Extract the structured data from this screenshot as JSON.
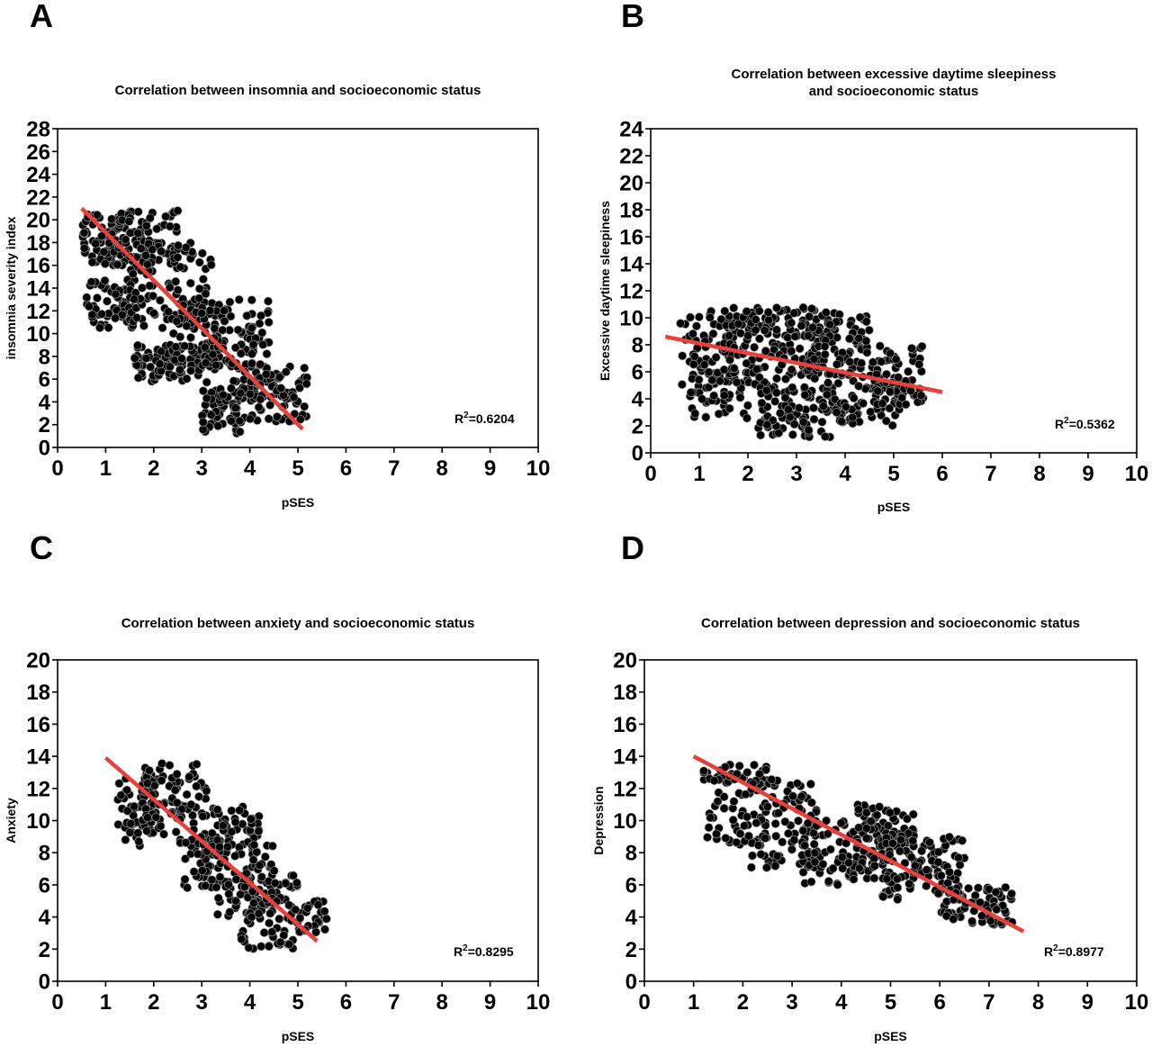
{
  "figure": {
    "panels": [
      {
        "letter": "A"
      },
      {
        "letter": "B"
      },
      {
        "letter": "C"
      },
      {
        "letter": "D"
      }
    ]
  },
  "chart_data": [
    {
      "type": "scatter",
      "title_lines": [
        "Correlation between insomnia and socioeconomic status"
      ],
      "xlabel": "pSES",
      "ylabel": "insomnia severity index",
      "xlim": [
        0,
        10
      ],
      "ylim": [
        0,
        28
      ],
      "xticks": [
        0,
        1,
        2,
        3,
        4,
        5,
        6,
        7,
        8,
        9,
        10
      ],
      "yticks": [
        0,
        2,
        4,
        6,
        8,
        10,
        12,
        14,
        16,
        18,
        20,
        22,
        24,
        26,
        28
      ],
      "regression": {
        "x": [
          0.5,
          5.1
        ],
        "y": [
          21.0,
          1.6
        ],
        "color": "#e8413c"
      },
      "r_squared": "0.6204",
      "grid": false,
      "point_color": "#000000",
      "clusters": [
        {
          "x": [
            0.5,
            1.4
          ],
          "y": [
            16,
            20.5
          ],
          "n": 70
        },
        {
          "x": [
            0.6,
            1.6
          ],
          "y": [
            10.5,
            15
          ],
          "n": 70
        },
        {
          "x": [
            1.2,
            2.5
          ],
          "y": [
            16,
            20.8
          ],
          "n": 80
        },
        {
          "x": [
            1.5,
            3.2
          ],
          "y": [
            10.5,
            18
          ],
          "n": 110
        },
        {
          "x": [
            1.6,
            2.6
          ],
          "y": [
            5.8,
            9
          ],
          "n": 60
        },
        {
          "x": [
            2.4,
            3.3
          ],
          "y": [
            6,
            12
          ],
          "n": 60
        },
        {
          "x": [
            3.0,
            4.4
          ],
          "y": [
            7,
            13
          ],
          "n": 90
        },
        {
          "x": [
            3.0,
            3.8
          ],
          "y": [
            1.2,
            6
          ],
          "n": 50
        },
        {
          "x": [
            3.6,
            5.2
          ],
          "y": [
            2.2,
            7.5
          ],
          "n": 110
        }
      ]
    },
    {
      "type": "scatter",
      "title_lines": [
        "Correlation between excessive daytime sleepiness",
        "and socioeconomic status"
      ],
      "xlabel": "pSES",
      "ylabel": "Excessive daytime sleepiness",
      "xlim": [
        0,
        10
      ],
      "ylim": [
        0,
        24
      ],
      "xticks": [
        0,
        1,
        2,
        3,
        4,
        5,
        6,
        7,
        8,
        9,
        10
      ],
      "yticks": [
        0,
        2,
        4,
        6,
        8,
        10,
        12,
        14,
        16,
        18,
        20,
        22,
        24
      ],
      "regression": {
        "x": [
          0.3,
          6.0
        ],
        "y": [
          8.6,
          4.5
        ],
        "color": "#e8413c"
      },
      "r_squared": "0.5362",
      "grid": false,
      "point_color": "#000000",
      "clusters": [
        {
          "x": [
            0.6,
            1.8
          ],
          "y": [
            5,
            10.5
          ],
          "n": 60
        },
        {
          "x": [
            0.8,
            2.0
          ],
          "y": [
            2.5,
            6
          ],
          "n": 50
        },
        {
          "x": [
            1.5,
            3.5
          ],
          "y": [
            5,
            10.8
          ],
          "n": 160
        },
        {
          "x": [
            2.2,
            3.8
          ],
          "y": [
            1,
            5
          ],
          "n": 90
        },
        {
          "x": [
            3.2,
            4.5
          ],
          "y": [
            6,
            10.5
          ],
          "n": 80
        },
        {
          "x": [
            3.5,
            5.2
          ],
          "y": [
            2,
            7
          ],
          "n": 100
        },
        {
          "x": [
            4.5,
            5.7
          ],
          "y": [
            3.5,
            8
          ],
          "n": 50
        }
      ]
    },
    {
      "type": "scatter",
      "title_lines": [
        "Correlation between anxiety and socioeconomic status"
      ],
      "xlabel": "pSES",
      "ylabel": "Anxiety",
      "xlim": [
        0,
        10
      ],
      "ylim": [
        0,
        20
      ],
      "xticks": [
        0,
        1,
        2,
        3,
        4,
        5,
        6,
        7,
        8,
        9,
        10
      ],
      "yticks": [
        0,
        2,
        4,
        6,
        8,
        10,
        12,
        14,
        16,
        18,
        20
      ],
      "regression": {
        "x": [
          1.0,
          5.4
        ],
        "y": [
          13.9,
          2.5
        ],
        "color": "#e8413c"
      },
      "r_squared": "0.8295",
      "grid": false,
      "point_color": "#000000",
      "clusters": [
        {
          "x": [
            1.2,
            2.0
          ],
          "y": [
            8.2,
            13
          ],
          "n": 50
        },
        {
          "x": [
            1.8,
            3.1
          ],
          "y": [
            9,
            13.6
          ],
          "n": 90
        },
        {
          "x": [
            2.5,
            3.4
          ],
          "y": [
            5.8,
            9
          ],
          "n": 60
        },
        {
          "x": [
            3.2,
            4.2
          ],
          "y": [
            8,
            11
          ],
          "n": 50
        },
        {
          "x": [
            3.3,
            4.5
          ],
          "y": [
            4,
            8.5
          ],
          "n": 80
        },
        {
          "x": [
            3.8,
            5.0
          ],
          "y": [
            2,
            7
          ],
          "n": 80
        },
        {
          "x": [
            4.9,
            5.6
          ],
          "y": [
            3,
            5
          ],
          "n": 30
        }
      ]
    },
    {
      "type": "scatter",
      "title_lines": [
        "Correlation between depression and socioeconomic status"
      ],
      "xlabel": "pSES",
      "ylabel": "Depression",
      "xlim": [
        0,
        10
      ],
      "ylim": [
        0,
        20
      ],
      "xticks": [
        0,
        1,
        2,
        3,
        4,
        5,
        6,
        7,
        8,
        9,
        10
      ],
      "yticks": [
        0,
        2,
        4,
        6,
        8,
        10,
        12,
        14,
        16,
        18,
        20
      ],
      "regression": {
        "x": [
          1.0,
          7.7
        ],
        "y": [
          14.0,
          3.1
        ],
        "color": "#e8413c"
      },
      "r_squared": "0.8977",
      "grid": false,
      "point_color": "#000000",
      "clusters": [
        {
          "x": [
            1.2,
            2.5
          ],
          "y": [
            8.5,
            13.5
          ],
          "n": 80
        },
        {
          "x": [
            2.0,
            3.5
          ],
          "y": [
            7,
            13
          ],
          "n": 90
        },
        {
          "x": [
            3.2,
            5.0
          ],
          "y": [
            6,
            10
          ],
          "n": 110
        },
        {
          "x": [
            4.3,
            5.5
          ],
          "y": [
            8.5,
            11
          ],
          "n": 50
        },
        {
          "x": [
            4.8,
            6.5
          ],
          "y": [
            5,
            9
          ],
          "n": 110
        },
        {
          "x": [
            6.0,
            7.5
          ],
          "y": [
            3.5,
            6
          ],
          "n": 70
        }
      ]
    }
  ]
}
